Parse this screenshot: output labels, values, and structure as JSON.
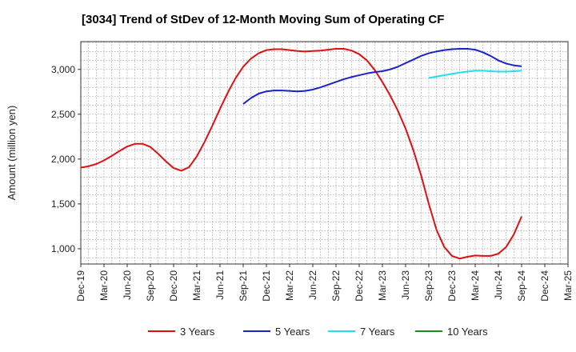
{
  "chart_data": {
    "type": "line",
    "title": "[3034]  Trend of StDev of 12-Month Moving Sum of Operating CF",
    "xlabel": "",
    "ylabel": "Amount (million yen)",
    "ylim": [
      830,
      3310
    ],
    "xlim": [
      "Dec-19",
      "Mar-25"
    ],
    "grid": true,
    "legend_position": "bottom",
    "x_tick_labels": [
      "Dec-19",
      "Mar-20",
      "Jun-20",
      "Sep-20",
      "Dec-20",
      "Mar-21",
      "Jun-21",
      "Sep-21",
      "Dec-21",
      "Mar-22",
      "Jun-22",
      "Sep-22",
      "Dec-22",
      "Mar-23",
      "Jun-23",
      "Sep-23",
      "Dec-23",
      "Mar-24",
      "Jun-24",
      "Sep-24",
      "Dec-24",
      "Mar-25"
    ],
    "y_ticks": [
      1000,
      1500,
      2000,
      2500,
      3000
    ],
    "y_tick_labels": [
      "1,000",
      "1,500",
      "2,000",
      "2,500",
      "3,000"
    ],
    "series": [
      {
        "name": "3 Years",
        "color": "#dd1111",
        "points": [
          [
            "Dec-19",
            1905
          ],
          [
            "Jan-20",
            1920
          ],
          [
            "Feb-20",
            1945
          ],
          [
            "Mar-20",
            1985
          ],
          [
            "Apr-20",
            2035
          ],
          [
            "May-20",
            2090
          ],
          [
            "Jun-20",
            2140
          ],
          [
            "Jul-20",
            2170
          ],
          [
            "Aug-20",
            2170
          ],
          [
            "Sep-20",
            2135
          ],
          [
            "Oct-20",
            2060
          ],
          [
            "Nov-20",
            1975
          ],
          [
            "Dec-20",
            1900
          ],
          [
            "Jan-21",
            1870
          ],
          [
            "Feb-21",
            1910
          ],
          [
            "Mar-21",
            2030
          ],
          [
            "Apr-21",
            2190
          ],
          [
            "May-21",
            2370
          ],
          [
            "Jun-21",
            2560
          ],
          [
            "Jul-21",
            2740
          ],
          [
            "Aug-21",
            2900
          ],
          [
            "Sep-21",
            3030
          ],
          [
            "Oct-21",
            3120
          ],
          [
            "Nov-21",
            3180
          ],
          [
            "Dec-21",
            3215
          ],
          [
            "Jan-22",
            3225
          ],
          [
            "Feb-22",
            3225
          ],
          [
            "Mar-22",
            3215
          ],
          [
            "Apr-22",
            3205
          ],
          [
            "May-22",
            3200
          ],
          [
            "Jun-22",
            3205
          ],
          [
            "Jul-22",
            3210
          ],
          [
            "Aug-22",
            3220
          ],
          [
            "Sep-22",
            3230
          ],
          [
            "Oct-22",
            3230
          ],
          [
            "Nov-22",
            3210
          ],
          [
            "Dec-22",
            3170
          ],
          [
            "Jan-23",
            3100
          ],
          [
            "Feb-23",
            2995
          ],
          [
            "Mar-23",
            2860
          ],
          [
            "Apr-23",
            2710
          ],
          [
            "May-23",
            2540
          ],
          [
            "Jun-23",
            2340
          ],
          [
            "Jul-23",
            2100
          ],
          [
            "Aug-23",
            1820
          ],
          [
            "Sep-23",
            1500
          ],
          [
            "Oct-23",
            1210
          ],
          [
            "Nov-23",
            1020
          ],
          [
            "Dec-23",
            920
          ],
          [
            "Jan-24",
            890
          ],
          [
            "Feb-24",
            910
          ],
          [
            "Mar-24",
            925
          ],
          [
            "Apr-24",
            920
          ],
          [
            "May-24",
            920
          ],
          [
            "Jun-24",
            945
          ],
          [
            "Jul-24",
            1020
          ],
          [
            "Aug-24",
            1160
          ],
          [
            "Sep-24",
            1360
          ]
        ]
      },
      {
        "name": "5 Years",
        "color": "#1a22c8",
        "points": [
          [
            "Sep-21",
            2615
          ],
          [
            "Oct-21",
            2680
          ],
          [
            "Nov-21",
            2730
          ],
          [
            "Dec-21",
            2755
          ],
          [
            "Jan-22",
            2765
          ],
          [
            "Feb-22",
            2765
          ],
          [
            "Mar-22",
            2760
          ],
          [
            "Apr-22",
            2755
          ],
          [
            "May-22",
            2760
          ],
          [
            "Jun-22",
            2775
          ],
          [
            "Jul-22",
            2800
          ],
          [
            "Aug-22",
            2830
          ],
          [
            "Sep-22",
            2860
          ],
          [
            "Oct-22",
            2890
          ],
          [
            "Nov-22",
            2915
          ],
          [
            "Dec-22",
            2935
          ],
          [
            "Jan-23",
            2955
          ],
          [
            "Feb-23",
            2970
          ],
          [
            "Mar-23",
            2980
          ],
          [
            "Apr-23",
            3000
          ],
          [
            "May-23",
            3030
          ],
          [
            "Jun-23",
            3070
          ],
          [
            "Jul-23",
            3110
          ],
          [
            "Aug-23",
            3150
          ],
          [
            "Sep-23",
            3180
          ],
          [
            "Oct-23",
            3200
          ],
          [
            "Nov-23",
            3215
          ],
          [
            "Dec-23",
            3225
          ],
          [
            "Jan-24",
            3230
          ],
          [
            "Feb-24",
            3230
          ],
          [
            "Mar-24",
            3220
          ],
          [
            "Apr-24",
            3190
          ],
          [
            "May-24",
            3150
          ],
          [
            "Jun-24",
            3100
          ],
          [
            "Jul-24",
            3065
          ],
          [
            "Aug-24",
            3045
          ],
          [
            "Sep-24",
            3035
          ]
        ]
      },
      {
        "name": "7 Years",
        "color": "#22e0ea",
        "points": [
          [
            "Sep-23",
            2905
          ],
          [
            "Oct-23",
            2920
          ],
          [
            "Nov-23",
            2935
          ],
          [
            "Dec-23",
            2950
          ],
          [
            "Jan-24",
            2965
          ],
          [
            "Feb-24",
            2975
          ],
          [
            "Mar-24",
            2985
          ],
          [
            "Apr-24",
            2985
          ],
          [
            "May-24",
            2980
          ],
          [
            "Jun-24",
            2975
          ],
          [
            "Jul-24",
            2975
          ],
          [
            "Aug-24",
            2980
          ],
          [
            "Sep-24",
            2985
          ]
        ]
      },
      {
        "name": "10 Years",
        "color": "#1f8a1f",
        "points": []
      }
    ]
  }
}
